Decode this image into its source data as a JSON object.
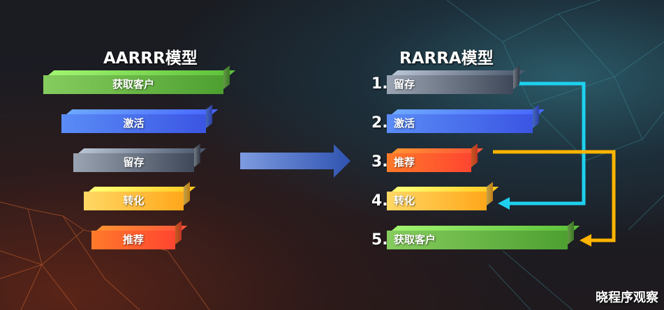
{
  "aarrr": {
    "title": "AARRR模型",
    "steps": [
      "获取客户",
      "激活",
      "留存",
      "转化",
      "推荐"
    ]
  },
  "rarra": {
    "title": "RARRA模型",
    "numbers": [
      "1.",
      "2.",
      "3.",
      "4.",
      "5."
    ],
    "steps": [
      "留存",
      "激活",
      "推荐",
      "转化",
      "获取客户"
    ]
  },
  "colors": {
    "acquisition": "#5fb33f",
    "activation": "#4a6ff0",
    "retention": "#6b7585",
    "revenue": "#ffbe3a",
    "referral": "#ff5a2c",
    "cyan_arrow": "#1ed0ee",
    "orange_arrow": "#ffb400",
    "main_arrow": "#3f63b8"
  },
  "watermark": "晓程序观察"
}
